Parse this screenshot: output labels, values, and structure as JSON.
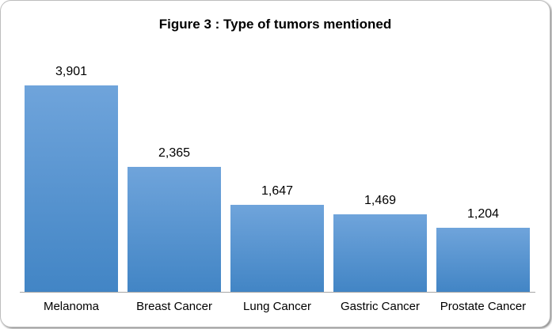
{
  "chart_data": {
    "type": "bar",
    "title": "Figure 3 : Type of tumors mentioned",
    "categories": [
      "Melanoma",
      "Breast Cancer",
      "Lung Cancer",
      "Gastric Cancer",
      "Prostate Cancer"
    ],
    "values": [
      3901,
      2365,
      1647,
      1469,
      1204
    ],
    "value_labels": [
      "3,901",
      "2,365",
      "1,647",
      "1,469",
      "1,204"
    ],
    "xlabel": "",
    "ylabel": "",
    "ylim": [
      0,
      3901
    ],
    "grid": false,
    "legend": false,
    "colors": {
      "bar_gradient_top": "#6FA4DB",
      "bar_gradient_bottom": "#4285C5",
      "axis_line": "#A6A6A6",
      "text": "#000000"
    }
  }
}
